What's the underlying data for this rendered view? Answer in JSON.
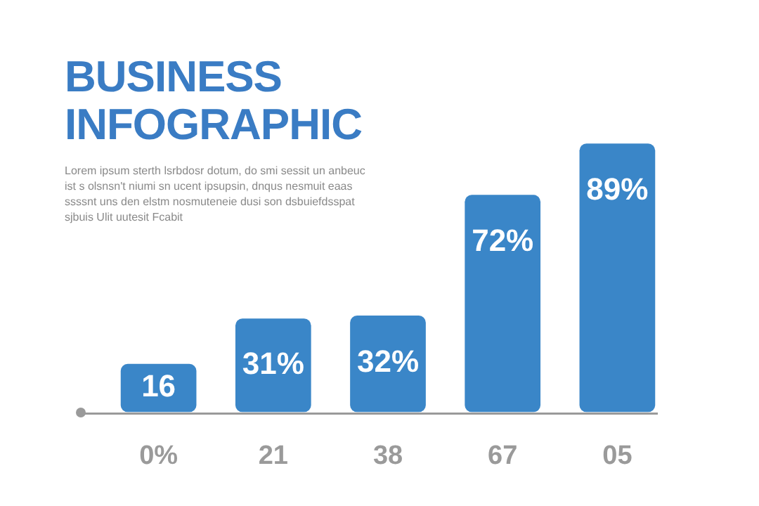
{
  "chart_data": {
    "type": "bar",
    "title": "BUSINESS INFOGRAPHIC",
    "annotations": [
      "Lorem ipsum sterth lsrbdosr dotum, do smi sessit un anbeuc ist s olsnsn't niumi sn ucent ipsupsin, dnqus nesmuit eaas ssssnt uns den elstm nosmuteneie dusi son dsbuiefdsspat sjbuis Ulit uutesit Fcabit"
    ],
    "categories": [
      "0%",
      "21",
      "38",
      "67",
      "05"
    ],
    "values": [
      16,
      31,
      32,
      72,
      89
    ],
    "value_labels": [
      "16",
      "31%",
      "32%",
      "72%",
      "89%"
    ],
    "color": "#3a86c8",
    "tick_labels": "x",
    "grid": false,
    "legend": false
  }
}
